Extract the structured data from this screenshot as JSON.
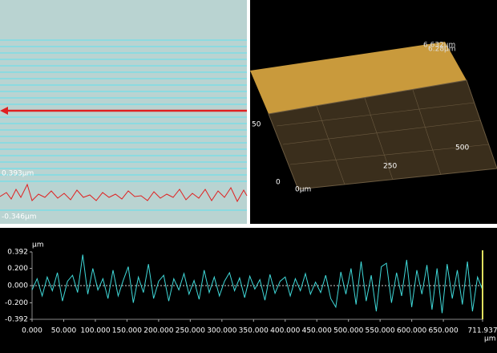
{
  "image_panel": {
    "max_label": "0.393µm",
    "min_label": "-0.346µm"
  },
  "view_3d": {
    "z_max_label": "6.632µm",
    "z_label": "6.28µm",
    "y_label": "50",
    "x_label_far": "500",
    "x_label_mid": "250",
    "origin_label": "0",
    "x_origin_label": "0µm"
  },
  "chart_data": {
    "type": "line",
    "y_unit": "µm",
    "x_unit": "µm",
    "color": "#3fd9d9",
    "x": [
      0,
      8,
      16,
      24,
      32,
      40,
      48,
      56,
      64,
      72,
      80,
      88,
      96,
      104,
      112,
      120,
      128,
      136,
      144,
      152,
      160,
      168,
      176,
      184,
      192,
      200,
      208,
      216,
      224,
      232,
      240,
      248,
      256,
      264,
      272,
      280,
      288,
      296,
      304,
      312,
      320,
      328,
      336,
      344,
      352,
      360,
      368,
      376,
      384,
      392,
      400,
      408,
      416,
      424,
      432,
      440,
      448,
      456,
      464,
      472,
      480,
      488,
      496,
      504,
      512,
      520,
      528,
      536,
      544,
      552,
      560,
      568,
      576,
      584,
      592,
      600,
      608,
      616,
      624,
      632,
      640,
      648,
      656,
      664,
      672,
      680,
      688,
      696,
      704,
      711.937
    ],
    "values": [
      -0.05,
      0.08,
      -0.12,
      0.1,
      -0.06,
      0.15,
      -0.18,
      0.05,
      0.12,
      -0.08,
      0.36,
      -0.1,
      0.2,
      -0.05,
      0.08,
      -0.15,
      0.18,
      -0.12,
      0.06,
      0.22,
      -0.2,
      0.1,
      -0.08,
      0.25,
      -0.15,
      0.05,
      0.12,
      -0.18,
      0.08,
      -0.05,
      0.14,
      -0.1,
      0.06,
      -0.16,
      0.18,
      -0.08,
      0.1,
      -0.12,
      0.05,
      0.15,
      -0.06,
      0.09,
      -0.14,
      0.11,
      -0.04,
      0.07,
      -0.17,
      0.13,
      -0.09,
      0.05,
      0.1,
      -0.12,
      0.08,
      -0.06,
      0.14,
      -0.1,
      0.04,
      -0.08,
      0.12,
      -0.15,
      -0.25,
      0.16,
      -0.1,
      0.2,
      -0.22,
      0.28,
      -0.18,
      0.12,
      -0.3,
      0.22,
      0.26,
      -0.2,
      0.15,
      -0.12,
      0.3,
      -0.25,
      0.18,
      -0.1,
      0.24,
      -0.28,
      0.2,
      -0.32,
      0.25,
      -0.15,
      0.18,
      -0.22,
      0.28,
      -0.3,
      0.1,
      -0.05
    ],
    "xlim": [
      0,
      711.937
    ],
    "ylim": [
      -0.392,
      0.392
    ],
    "yticks": [
      {
        "value": 0.392,
        "label": "0.392"
      },
      {
        "value": 0.2,
        "label": "0.200"
      },
      {
        "value": 0,
        "label": "0.000"
      },
      {
        "value": -0.2,
        "label": "-0.200"
      },
      {
        "value": -0.392,
        "label": "-0.392"
      }
    ],
    "xticks": [
      {
        "value": 0,
        "label": "0.000"
      },
      {
        "value": 50,
        "label": "50.000"
      },
      {
        "value": 100,
        "label": "100.000"
      },
      {
        "value": 150,
        "label": "150.000"
      },
      {
        "value": 200,
        "label": "200.000"
      },
      {
        "value": 250,
        "label": "250.000"
      },
      {
        "value": 300,
        "label": "300.000"
      },
      {
        "value": 350,
        "label": "350.000"
      },
      {
        "value": 400,
        "label": "400.000"
      },
      {
        "value": 450,
        "label": "450.000"
      },
      {
        "value": 500,
        "label": "500.000"
      },
      {
        "value": 550,
        "label": "550.000"
      },
      {
        "value": 600,
        "label": "600.000"
      },
      {
        "value": 650,
        "label": "650.000"
      },
      {
        "value": 711.937,
        "label": "711.937"
      }
    ]
  }
}
